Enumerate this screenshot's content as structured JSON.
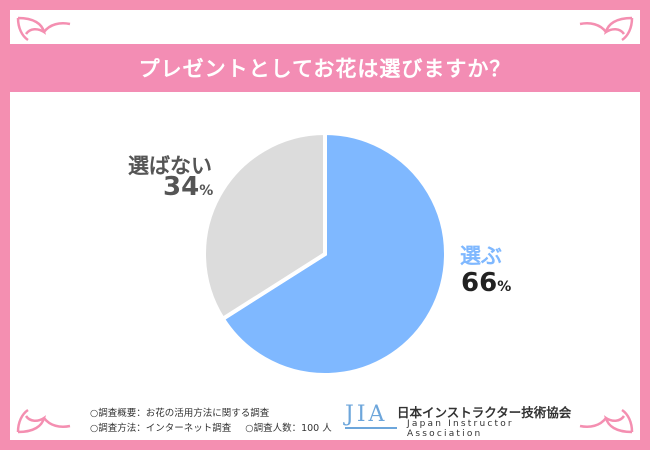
{
  "title": "プレゼントとしてお花は選びますか？",
  "chart_data": {
    "type": "pie",
    "title": "プレゼントとしてお花は選びますか？",
    "slices": [
      {
        "label": "選ぶ",
        "value": 66,
        "percent_text": "66",
        "color": "#7fb8ff"
      },
      {
        "label": "選ばない",
        "value": 34,
        "percent_text": "34",
        "color": "#dcdcdc"
      }
    ],
    "unit": "%"
  },
  "notes": {
    "line1": "○調査概要：お花の活用方法に関する調査",
    "line2a": "○調査方法：インターネット調査",
    "line2b": "○調査人数：100 人"
  },
  "logo": {
    "mark": "JIA",
    "name_jp": "日本インストラクター技術協会",
    "name_en": "Japan Instructor Association"
  },
  "colors": {
    "frame": "#f48fb1",
    "banner": "#f38db4",
    "choose": "#7fb8ff",
    "not_choose": "#dcdcdc"
  }
}
